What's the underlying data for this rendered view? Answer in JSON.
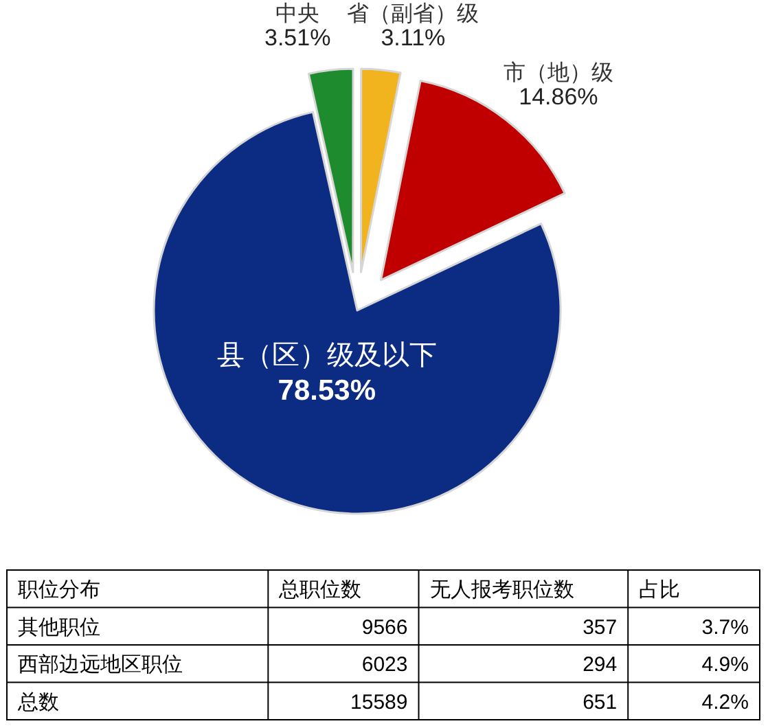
{
  "chart_data": [
    {
      "type": "pie",
      "categories": [
        "中央",
        "省（副省）级",
        "市（地）级",
        "县（区）级及以下"
      ],
      "values": [
        3.51,
        3.11,
        14.86,
        78.53
      ],
      "value_labels": [
        "3.51%",
        "3.11%",
        "14.86%",
        "78.53%"
      ],
      "colors": [
        "#1e8b2e",
        "#f2b41e",
        "#c00000",
        "#0c2b82"
      ]
    },
    {
      "type": "other",
      "xlabel": "职位分布",
      "categories": [
        "其他职位",
        "西部边远地区职位",
        "总数"
      ],
      "data_labels": true,
      "series": [
        {
          "name": "总职位数",
          "values": [
            9566,
            6023,
            15589
          ]
        },
        {
          "name": "无人报考职位数",
          "values": [
            357,
            294,
            651
          ]
        },
        {
          "name": "占比",
          "values": [
            3.7,
            4.9,
            4.2
          ],
          "value_labels": [
            "3.7%",
            "4.9%",
            "4.2%"
          ]
        }
      ]
    }
  ]
}
